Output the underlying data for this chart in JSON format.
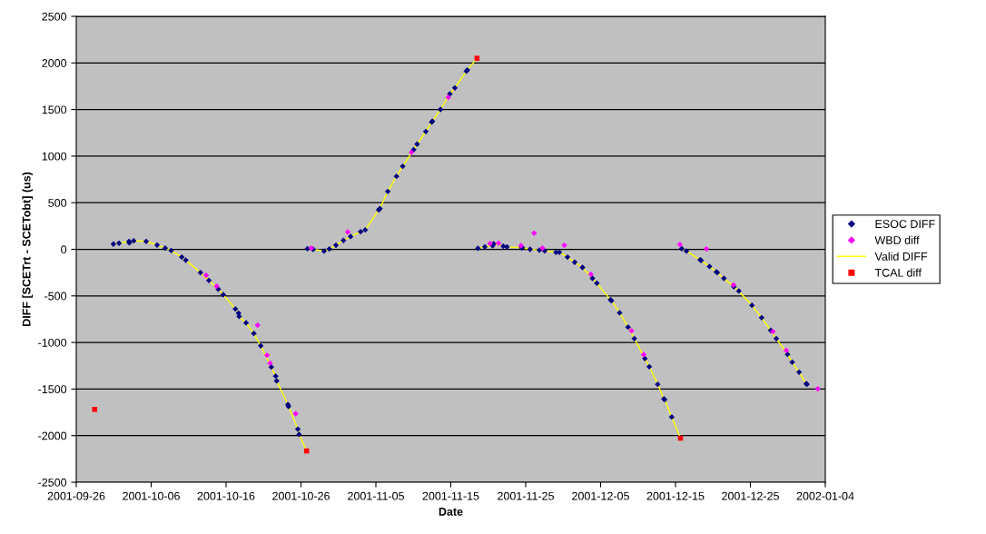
{
  "chart_data": {
    "type": "scatter",
    "xlabel": "Date",
    "ylabel": "DIFF [SCETrt - SCETobt] (us)",
    "xlim": [
      "2001-09-26",
      "2002-01-04"
    ],
    "xticks": [
      {
        "value": "2001-09-26",
        "label": "2001-09-26"
      },
      {
        "value": "2001-10-06",
        "label": "2001-10-06"
      },
      {
        "value": "2001-10-16",
        "label": "2001-10-16"
      },
      {
        "value": "2001-10-26",
        "label": "2001-10-26"
      },
      {
        "value": "2001-11-05",
        "label": "2001-11-05"
      },
      {
        "value": "2001-11-15",
        "label": "2001-11-15"
      },
      {
        "value": "2001-11-25",
        "label": "2001-11-25"
      },
      {
        "value": "2001-12-05",
        "label": "2001-12-05"
      },
      {
        "value": "2001-12-15",
        "label": "2001-12-15"
      },
      {
        "value": "2001-12-25",
        "label": "2001-12-25"
      },
      {
        "value": "2002-01-04",
        "label": "2002-01-04"
      }
    ],
    "ylim": [
      -2500,
      2500
    ],
    "yticks": [
      -2500,
      -2000,
      -1500,
      -1000,
      -500,
      0,
      500,
      1000,
      1500,
      2000,
      2500
    ],
    "grid": "y",
    "legend": "right",
    "series": [
      {
        "name": "ESOC DIFF",
        "marker": "diamond",
        "color": "#000080",
        "x": [
          "2001-09-30T23:00",
          "2001-10-01T17:00",
          "2001-10-03T01:00",
          "2001-10-03T02:00",
          "2001-10-03T16:00",
          "2001-10-05T08:00",
          "2001-10-06T19:00",
          "2001-10-07T21:00",
          "2001-10-08T16:00",
          "2001-10-10T02:00",
          "2001-10-10T15:00",
          "2001-10-12T14:00",
          "2001-10-13T17:00",
          "2001-10-14T23:00",
          "2001-10-15T15:00",
          "2001-10-17T06:00",
          "2001-10-17T16:00",
          "2001-10-17T18:00",
          "2001-10-18T16:00",
          "2001-10-19T17:00",
          "2001-10-20T15:00",
          "2001-10-22T01:00",
          "2001-10-22T15:00",
          "2001-10-22T18:00",
          "2001-10-24T06:00",
          "2001-10-24T08:00",
          "2001-10-25T14:00",
          "2001-10-25T18:00",
          "2001-10-26T21:00",
          "2001-10-27T15:00",
          "2001-10-29T02:00",
          "2001-10-29T19:00",
          "2001-10-30T16:00",
          "2001-10-31T16:00",
          "2001-11-01T15:00",
          "2001-11-02T23:00",
          "2001-11-03T14:00",
          "2001-11-05T09:00",
          "2001-11-05T13:00",
          "2001-11-06T14:00",
          "2001-11-07T18:00",
          "2001-11-08T14:00",
          "2001-11-10T01:00",
          "2001-11-10T12:00",
          "2001-11-11T16:00",
          "2001-11-12T11:00",
          "2001-11-12T13:00",
          "2001-11-13T15:00",
          "2001-11-14T21:00",
          "2001-11-15T13:00",
          "2001-11-17T02:00",
          "2001-11-17T05:00",
          "2001-11-18T15:00",
          "2001-11-19T13:00",
          "2001-11-20T14:00",
          "2001-11-20T17:00",
          "2001-11-22T00:00",
          "2001-11-22T12:00",
          "2001-11-24T11:00",
          "2001-11-24T13:00",
          "2001-11-25T14:00",
          "2001-11-26T20:00",
          "2001-11-27T13:00",
          "2001-11-29T01:00",
          "2001-11-29T12:00",
          "2001-11-30T14:00",
          "2001-12-01T13:00",
          "2001-12-02T14:00",
          "2001-12-03T22:00",
          "2001-12-04T12:00",
          "2001-12-06T08:00",
          "2001-12-06T11:00",
          "2001-12-07T13:00",
          "2001-12-08T16:00",
          "2001-12-09T12:00",
          "2001-12-10T22:00",
          "2001-12-11T12:00",
          "2001-12-12T15:00",
          "2001-12-13T11:00",
          "2001-12-13T13:00",
          "2001-12-14T12:00",
          "2001-12-15T20:00",
          "2001-12-16T11:00",
          "2001-12-18T07:00",
          "2001-12-18T10:00",
          "2001-12-19T13:00",
          "2001-12-20T11:00",
          "2001-12-20T14:00",
          "2001-12-21T11:00",
          "2001-12-22T19:00",
          "2001-12-23T11:00",
          "2001-12-25T05:00",
          "2001-12-26T12:00",
          "2001-12-27T17:00",
          "2001-12-28T11:00",
          "2001-12-29T23:00",
          "2001-12-30T14:00",
          "2001-12-31T12:00",
          "2002-01-01T11:00",
          "2002-01-01T13:00"
        ],
        "values": [
          56,
          65,
          85,
          69,
          91,
          85,
          46,
          13,
          -13,
          -84,
          -117,
          -250,
          -334,
          -429,
          -487,
          -640,
          -685,
          -721,
          -789,
          -903,
          -1036,
          -1264,
          -1361,
          -1413,
          -1666,
          -1686,
          -1930,
          -1988,
          7,
          0,
          -19,
          4,
          43,
          95,
          137,
          189,
          208,
          423,
          436,
          621,
          783,
          891,
          1069,
          1128,
          1264,
          1365,
          1375,
          1501,
          1667,
          1732,
          1911,
          1924,
          10,
          26,
          39,
          59,
          33,
          26,
          17,
          17,
          0,
          -9,
          -16,
          -32,
          -32,
          -84,
          -139,
          -195,
          -312,
          -364,
          -542,
          -552,
          -682,
          -835,
          -958,
          -1173,
          -1260,
          -1449,
          -1605,
          -1614,
          -1800,
          7,
          -19,
          -113,
          -120,
          -185,
          -243,
          -250,
          -312,
          -403,
          -448,
          -601,
          -734,
          -870,
          -958,
          -1127,
          -1212,
          -1319,
          -1442,
          -1449
        ]
      },
      {
        "name": "WBD diff",
        "marker": "diamond",
        "color": "#ff00ff",
        "x": [
          "2001-10-13T08:00",
          "2001-10-14T18:00",
          "2001-10-20T05:00",
          "2001-10-21T11:00",
          "2001-10-21T21:00",
          "2001-10-25T07:00",
          "2001-10-27T09:00",
          "2001-11-01T06:00",
          "2001-11-09T18:00",
          "2001-11-14T16:00",
          "2001-11-20T06:00",
          "2001-11-21T09:00",
          "2001-11-24T09:00",
          "2001-11-26T03:00",
          "2001-11-27T06:00",
          "2001-11-30T04:00",
          "2001-12-03T17:00",
          "2001-12-09T03:00",
          "2001-12-10T18:00",
          "2001-12-15T14:00",
          "2001-12-19T03:00",
          "2001-12-22T18:00",
          "2001-12-28T00:00",
          "2001-12-29T19:00",
          "2002-01-03T00:00"
        ],
        "values": [
          -279,
          -396,
          -815,
          -1137,
          -1221,
          -1764,
          13,
          186,
          1040,
          1631,
          62,
          65,
          39,
          173,
          13,
          43,
          -269,
          -874,
          -1130,
          52,
          4,
          -383,
          -883,
          -1085,
          -1497
        ]
      },
      {
        "name": "Valid DIFF",
        "type": "line",
        "marker": "none",
        "color": "#ffff00",
        "x": [
          "2001-09-30T23:00",
          "2001-10-01T17:00",
          "2001-10-03T01:00",
          "2001-10-03T02:00",
          "2001-10-03T16:00",
          "2001-10-05T08:00",
          "2001-10-06T19:00",
          "2001-10-07T21:00",
          "2001-10-08T16:00",
          "2001-10-10T02:00",
          "2001-10-10T15:00",
          "2001-10-12T14:00",
          "2001-10-13T17:00",
          "2001-10-14T23:00",
          "2001-10-15T15:00",
          "2001-10-17T06:00",
          "2001-10-17T16:00",
          "2001-10-17T18:00",
          "2001-10-18T16:00",
          "2001-10-19T17:00",
          "2001-10-20T15:00",
          "2001-10-22T01:00",
          "2001-10-22T15:00",
          "2001-10-22T18:00",
          "2001-10-24T06:00",
          "2001-10-24T08:00",
          "2001-10-25T14:00",
          "2001-10-25T18:00",
          "2001-10-26T18:00",
          "2001-10-26T20:00",
          "2001-10-26T21:00",
          "2001-10-27T15:00",
          "2001-10-29T02:00",
          "2001-10-29T19:00",
          "2001-10-30T16:00",
          "2001-10-31T16:00",
          "2001-11-01T15:00",
          "2001-11-02T23:00",
          "2001-11-03T14:00",
          "2001-11-05T09:00",
          "2001-11-05T13:00",
          "2001-11-06T14:00",
          "2001-11-07T18:00",
          "2001-11-08T14:00",
          "2001-11-10T01:00",
          "2001-11-10T12:00",
          "2001-11-11T16:00",
          "2001-11-12T11:00",
          "2001-11-12T13:00",
          "2001-11-13T15:00",
          "2001-11-14T21:00",
          "2001-11-15T13:00",
          "2001-11-17T02:00",
          "2001-11-17T05:00",
          "2001-11-18T12:00",
          "2001-11-18T14:00",
          "2001-11-18T15:00",
          "2001-11-19T13:00",
          "2001-11-20T14:00",
          "2001-11-20T17:00",
          "2001-11-22T00:00",
          "2001-11-22T12:00",
          "2001-11-24T11:00",
          "2001-11-24T13:00",
          "2001-11-25T14:00",
          "2001-11-26T20:00",
          "2001-11-27T13:00",
          "2001-11-29T01:00",
          "2001-11-29T12:00",
          "2001-11-30T14:00",
          "2001-12-01T13:00",
          "2001-12-02T14:00",
          "2001-12-03T22:00",
          "2001-12-04T12:00",
          "2001-12-06T08:00",
          "2001-12-06T11:00",
          "2001-12-07T13:00",
          "2001-12-08T16:00",
          "2001-12-09T12:00",
          "2001-12-10T22:00",
          "2001-12-11T12:00",
          "2001-12-12T15:00",
          "2001-12-13T11:00",
          "2001-12-13T13:00",
          "2001-12-14T12:00",
          "2001-12-15T16:00",
          "2001-12-15T18:00",
          "2001-12-15T20:00",
          "2001-12-16T11:00",
          "2001-12-18T07:00",
          "2001-12-18T10:00",
          "2001-12-19T13:00",
          "2001-12-20T11:00",
          "2001-12-20T14:00",
          "2001-12-21T11:00",
          "2001-12-22T19:00",
          "2001-12-23T11:00",
          "2001-12-25T05:00",
          "2001-12-26T12:00",
          "2001-12-27T17:00",
          "2001-12-28T11:00",
          "2001-12-29T23:00",
          "2001-12-30T14:00",
          "2001-12-31T12:00",
          "2002-01-01T11:00",
          "2002-01-01T13:00"
        ],
        "values": [
          56,
          65,
          85,
          69,
          91,
          85,
          46,
          13,
          -13,
          -84,
          -117,
          -250,
          -334,
          -429,
          -487,
          -640,
          -685,
          -721,
          -789,
          -903,
          -1036,
          -1264,
          -1361,
          -1413,
          -1666,
          -1686,
          -1930,
          -1988,
          -2164,
          null,
          7,
          0,
          -19,
          4,
          43,
          95,
          137,
          189,
          208,
          423,
          436,
          621,
          783,
          891,
          1069,
          1128,
          1264,
          1365,
          1375,
          1501,
          1667,
          1732,
          1911,
          1924,
          2050,
          null,
          10,
          26,
          39,
          59,
          33,
          26,
          17,
          17,
          0,
          -9,
          -16,
          -32,
          -32,
          -84,
          -139,
          -195,
          -312,
          -364,
          -542,
          -552,
          -682,
          -835,
          -958,
          -1173,
          -1260,
          -1449,
          -1605,
          -1614,
          -1800,
          -2027,
          null,
          7,
          -19,
          -113,
          -120,
          -185,
          -243,
          -250,
          -312,
          -403,
          -448,
          -601,
          -734,
          -870,
          -958,
          -1127,
          -1212,
          -1319,
          -1442,
          -1449
        ]
      },
      {
        "name": "TCAL diff",
        "marker": "square",
        "color": "#ff0000",
        "x": [
          "2001-09-28T11:00",
          "2001-10-26T18:00",
          "2001-11-18T12:00",
          "2001-12-15T16:00"
        ],
        "values": [
          -1718,
          -2164,
          2050,
          -2027
        ]
      }
    ]
  }
}
